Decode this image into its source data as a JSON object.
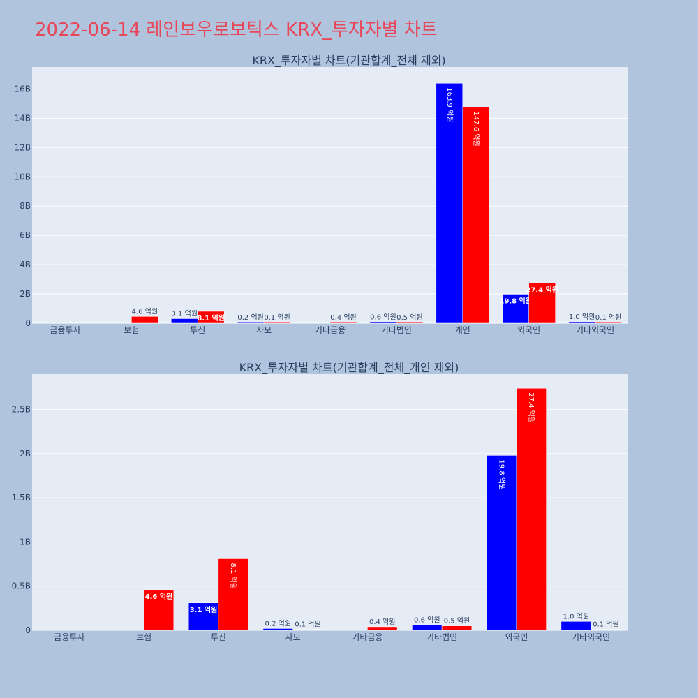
{
  "page_title": "2022-06-14 레인보우로보틱스 KRX_투자자별 차트",
  "colors": {
    "buy": "#0000ff",
    "sell": "#ff0000",
    "plot_bg": "#e5ecf6",
    "page_bg": "#b0c4de",
    "title": "#e8475a"
  },
  "chart_data": [
    {
      "type": "bar",
      "title": "KRX_투자자별 차트(기관합계_전체 제외)",
      "categories": [
        "금융투자",
        "보험",
        "투신",
        "사모",
        "기타금융",
        "기타법인",
        "개인",
        "외국인",
        "기타외국인"
      ],
      "ylim": [
        0,
        17500000000
      ],
      "yticks": [
        0,
        2000000000,
        4000000000,
        6000000000,
        8000000000,
        10000000000,
        12000000000,
        14000000000,
        16000000000
      ],
      "ytick_labels": [
        "0",
        "2B",
        "4B",
        "6B",
        "8B",
        "10B",
        "12B",
        "14B",
        "16B"
      ],
      "grid": true,
      "series": [
        {
          "color": "#0000ff",
          "values": [
            0,
            0,
            310000000,
            20000000,
            0,
            60000000,
            16390000000,
            1980000000,
            100000000
          ],
          "labels": [
            "",
            "",
            "3.1 억원",
            "0.2 억원",
            "",
            "0.6 억원",
            "163.9 억원",
            "19.8 억원",
            "1.0 억원"
          ]
        },
        {
          "color": "#ff0000",
          "values": [
            0,
            460000000,
            810000000,
            10000000,
            40000000,
            50000000,
            14760000000,
            2740000000,
            10000000
          ],
          "labels": [
            "",
            "4.6 억원",
            "8.1 억원",
            "0.1 억원",
            "0.4 억원",
            "0.5 억원",
            "147.6 억원",
            "27.4 억원",
            "0.1 억원"
          ]
        }
      ]
    },
    {
      "type": "bar",
      "title": "KRX_투자자별 차트(기관합계_전체_개인 제외)",
      "categories": [
        "금융투자",
        "보험",
        "투신",
        "사모",
        "기타금융",
        "기타법인",
        "외국인",
        "기타외국인"
      ],
      "ylim": [
        0,
        2900000000
      ],
      "yticks": [
        0,
        500000000,
        1000000000,
        1500000000,
        2000000000,
        2500000000
      ],
      "ytick_labels": [
        "0",
        "0.5B",
        "1B",
        "1.5B",
        "2B",
        "2.5B"
      ],
      "grid": true,
      "series": [
        {
          "color": "#0000ff",
          "values": [
            0,
            0,
            310000000,
            20000000,
            0,
            60000000,
            1980000000,
            100000000
          ],
          "labels": [
            "",
            "",
            "3.1 억원",
            "0.2 억원",
            "",
            "0.6 억원",
            "19.8 억원",
            "1.0 억원"
          ]
        },
        {
          "color": "#ff0000",
          "values": [
            0,
            460000000,
            810000000,
            10000000,
            40000000,
            50000000,
            2740000000,
            10000000
          ],
          "labels": [
            "",
            "4.6 억원",
            "8.1 억원",
            "0.1 억원",
            "0.4 억원",
            "0.5 억원",
            "27.4 억원",
            "0.1 억원"
          ]
        }
      ]
    }
  ]
}
